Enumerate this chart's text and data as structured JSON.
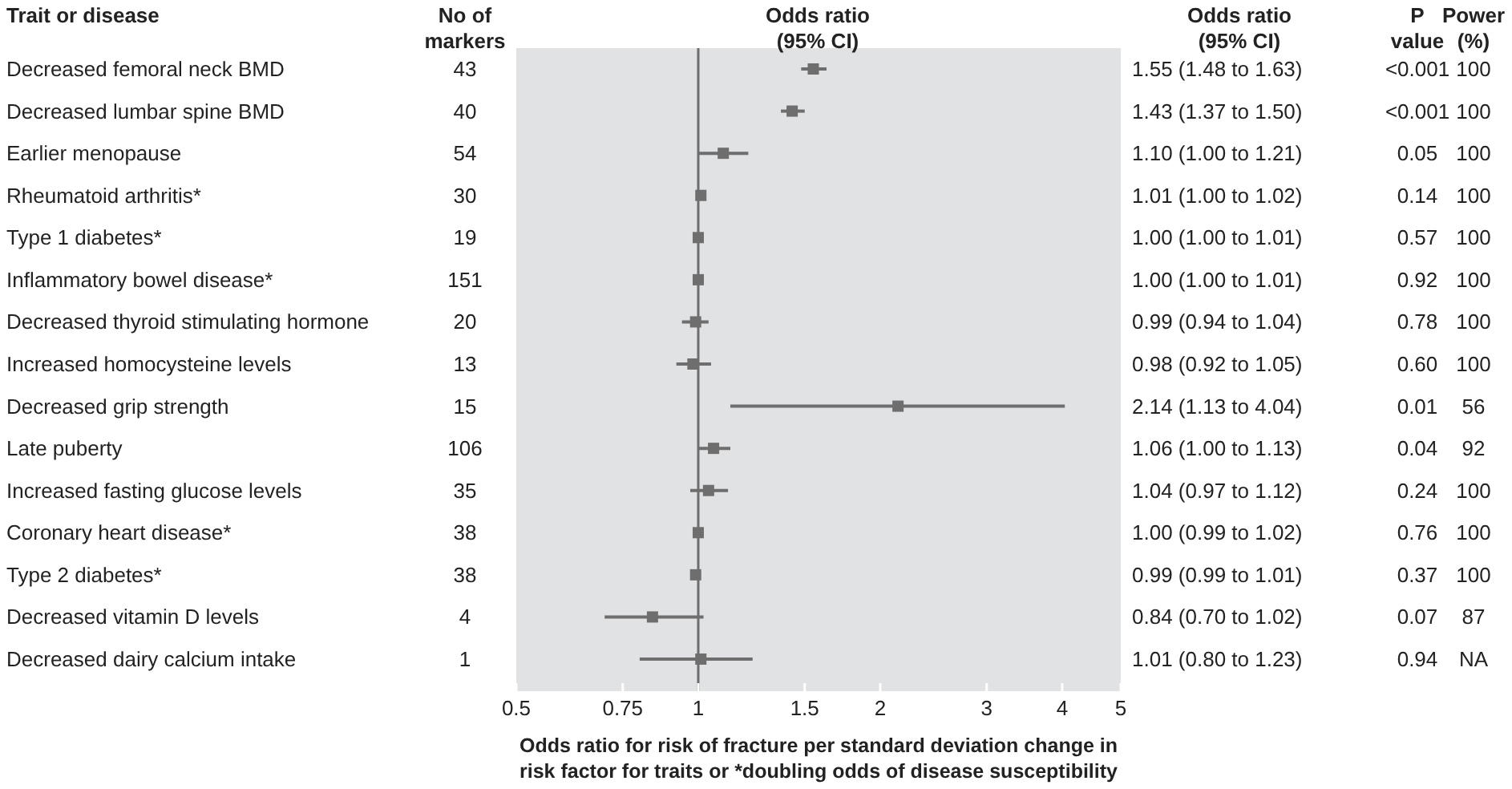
{
  "chart_data": {
    "type": "scatter",
    "orientation": "horizontal",
    "marker": "square",
    "log": "x",
    "color": "#6e6e6e",
    "ylabel": "Trait or disease",
    "xlabel": "Odds ratio for risk of fracture per standard deviation change in risk factor for traits or *doubling odds of disease susceptibility",
    "categories": [
      "Decreased femoral neck BMD",
      "Decreased lumbar spine BMD",
      "Earlier menopause",
      "Rheumatoid arthritis*",
      "Type 1 diabetes*",
      "Inflammatory bowel disease*",
      "Decreased thyroid stimulating hormone",
      "Increased homocysteine levels",
      "Decreased grip strength",
      "Late puberty",
      "Increased fasting glucose levels",
      "Coronary heart disease*",
      "Type 2 diabetes*",
      "Decreased vitamin D levels",
      "Decreased dairy calcium intake"
    ],
    "values": [
      1.55,
      1.43,
      1.1,
      1.01,
      1.0,
      1.0,
      0.99,
      0.98,
      2.14,
      1.06,
      1.04,
      1.0,
      0.99,
      0.84,
      1.01
    ],
    "errors": [
      [
        1.48,
        1.63
      ],
      [
        1.37,
        1.5
      ],
      [
        1.0,
        1.21
      ],
      [
        1.0,
        1.02
      ],
      [
        1.0,
        1.01
      ],
      [
        1.0,
        1.01
      ],
      [
        0.94,
        1.04
      ],
      [
        0.92,
        1.05
      ],
      [
        1.13,
        4.04
      ],
      [
        1.0,
        1.13
      ],
      [
        0.97,
        1.12
      ],
      [
        0.99,
        1.02
      ],
      [
        0.99,
        1.01
      ],
      [
        0.7,
        1.02
      ],
      [
        0.8,
        1.23
      ]
    ],
    "xlim": [
      0.5,
      5
    ],
    "xticks": [
      0.5,
      0.75,
      1,
      1.5,
      2,
      3,
      4,
      5
    ],
    "ref_lines": [
      {
        "axis": "x",
        "value": 1,
        "color": "#6e6e6e"
      }
    ],
    "annotations": [
      "No of markers",
      "Odds ratio (95% CI)",
      "Odds ratio (95% CI)",
      "P value",
      "Power (%)",
      "43",
      "40",
      "54",
      "30",
      "19",
      "151",
      "20",
      "13",
      "15",
      "106",
      "35",
      "38",
      "38",
      "4",
      "1",
      "1.55 (1.48 to 1.63)",
      "1.43 (1.37 to 1.50)",
      "1.10 (1.00 to 1.21)",
      "1.01 (1.00 to 1.02)",
      "1.00 (1.00 to 1.01)",
      "1.00 (1.00 to 1.01)",
      "0.99 (0.94 to 1.04)",
      "0.98 (0.92 to 1.05)",
      "2.14 (1.13 to 4.04)",
      "1.06 (1.00 to 1.13)",
      "1.04 (0.97 to 1.12)",
      "1.00 (0.99 to 1.02)",
      "0.99 (0.99 to 1.01)",
      "0.84 (0.70 to 1.02)",
      "1.01 (0.80 to 1.23)",
      "<0.001",
      "<0.001",
      "0.05",
      "0.14",
      "0.57",
      "0.92",
      "0.78",
      "0.60",
      "0.01",
      "0.04",
      "0.24",
      "0.76",
      "0.37",
      "0.07",
      "0.94",
      "100",
      "100",
      "100",
      "100",
      "100",
      "100",
      "100",
      "100",
      "56",
      "92",
      "100",
      "100",
      "100",
      "87",
      "NA"
    ]
  }
}
